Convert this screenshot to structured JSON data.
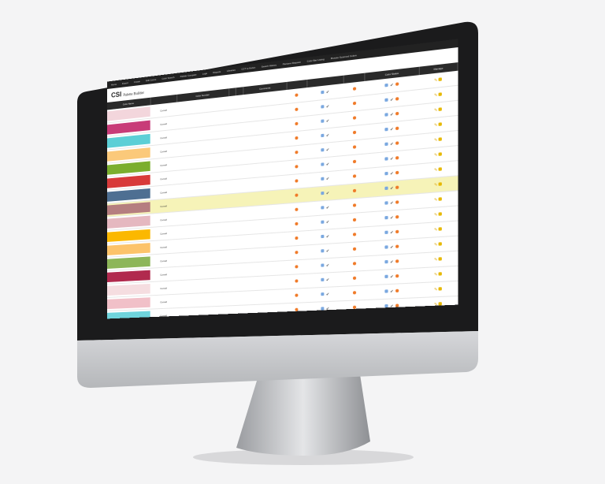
{
  "app": {
    "logo": "CSI",
    "logo_sub": "Palette Builder"
  },
  "nav": [
    "Home",
    "Export",
    "Create",
    "Edit Colors",
    "Color Search",
    "Palette Compare",
    "Logs",
    "Reports",
    "Libraries",
    "CCT to Kelvin",
    "Search History",
    "Pantone Request",
    "Color Bar Listing",
    "Browse Scanned Colors"
  ],
  "table": {
    "headers": [
      "Color Name",
      "",
      "Color Number",
      "",
      "",
      "Comments",
      "",
      "",
      "",
      "Color Status",
      "Manage"
    ],
    "rows": [
      {
        "color": "#f3d6dc",
        "owner": "Cornell"
      },
      {
        "color": "#c83c78",
        "owner": "Cornell"
      },
      {
        "color": "#5ccfd6",
        "owner": "Cornell"
      },
      {
        "color": "#fbc97a",
        "owner": "Cornell"
      },
      {
        "color": "#7bae2e",
        "owner": "Cornell"
      },
      {
        "color": "#d83a3a",
        "owner": "Cornell"
      },
      {
        "color": "#4e6f92",
        "owner": "Cornell"
      },
      {
        "color": "#b57e80",
        "owner": "Cornell",
        "highlight": true
      },
      {
        "color": "#e5b8c0",
        "owner": "Cornell"
      },
      {
        "color": "#fbb800",
        "owner": "Cornell"
      },
      {
        "color": "#fcc36a",
        "owner": "Cornell"
      },
      {
        "color": "#8db659",
        "owner": "Cornell"
      },
      {
        "color": "#b12a4e",
        "owner": "Cornell"
      },
      {
        "color": "#f5dde0",
        "owner": "Cornell"
      },
      {
        "color": "#f1c0c8",
        "owner": "Cornell"
      },
      {
        "color": "#6fd4dc",
        "owner": "Cornell"
      }
    ]
  }
}
